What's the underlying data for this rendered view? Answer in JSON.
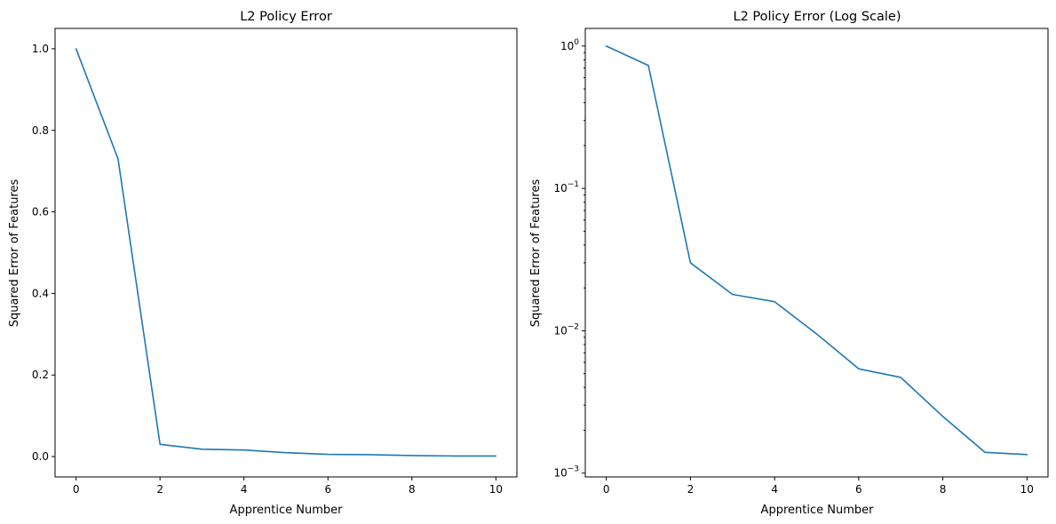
{
  "chart_data": [
    {
      "type": "line",
      "title": "L2 Policy Error",
      "xlabel": "Apprentice Number",
      "ylabel": "Squared Error of Features",
      "yscale": "linear",
      "xlim": [
        -0.5,
        10.5
      ],
      "ylim": [
        -0.05,
        1.05
      ],
      "xticks": [
        0,
        2,
        4,
        6,
        8,
        10
      ],
      "yticks": [
        0.0,
        0.2,
        0.4,
        0.6,
        0.8,
        1.0
      ],
      "ytick_labels": [
        "0.0",
        "0.2",
        "0.4",
        "0.6",
        "0.8",
        "1.0"
      ],
      "grid": false,
      "color": "#1f77b4",
      "x": [
        0,
        1,
        2,
        3,
        4,
        5,
        6,
        7,
        8,
        9,
        10
      ],
      "y": [
        1.0,
        0.73,
        0.03,
        0.018,
        0.016,
        0.0095,
        0.0054,
        0.0047,
        0.0025,
        0.0014,
        0.00135
      ]
    },
    {
      "type": "line",
      "title": "L2 Policy Error (Log Scale)",
      "xlabel": "Apprentice Number",
      "ylabel": "Squared Error of Features",
      "yscale": "log",
      "xlim": [
        -0.5,
        10.5
      ],
      "ylim": [
        0.00094,
        1.33
      ],
      "xticks": [
        0,
        2,
        4,
        6,
        8,
        10
      ],
      "yticks": [
        0.001,
        0.01,
        0.1,
        1
      ],
      "ytick_labels": [
        {
          "base": "10",
          "exp": "−3"
        },
        {
          "base": "10",
          "exp": "−2"
        },
        {
          "base": "10",
          "exp": "−1"
        },
        {
          "base": "10",
          "exp": "0"
        }
      ],
      "grid": false,
      "color": "#1f77b4",
      "x": [
        0,
        1,
        2,
        3,
        4,
        5,
        6,
        7,
        8,
        9,
        10
      ],
      "y": [
        1.0,
        0.73,
        0.03,
        0.018,
        0.016,
        0.0095,
        0.0054,
        0.0047,
        0.0025,
        0.0014,
        0.00135
      ]
    }
  ]
}
